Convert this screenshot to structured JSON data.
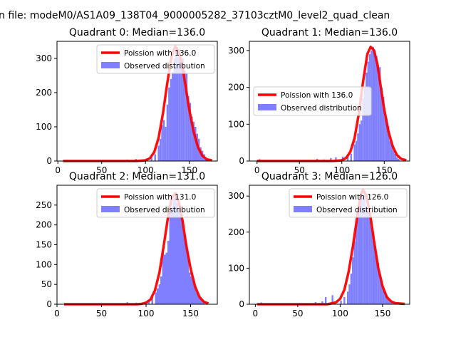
{
  "suptitle": "n file: modeM0/AS1A09_138T04_9000005282_37103cztM0_level2_quad_clean",
  "legend_observed": "Observed distribution",
  "colors": {
    "poisson": "#ff0000",
    "hist": "#7f7fff"
  },
  "chart_data": [
    {
      "type": "histogram+line",
      "title": "Quadrant 0: Median=136.0",
      "median": 136.0,
      "poisson_label": "Poission with 136.0",
      "legend_position": "top-right",
      "xlim": [
        -1,
        182
      ],
      "ylim": [
        0,
        350
      ],
      "xticks": [
        0,
        50,
        100,
        150
      ],
      "yticks": [
        0,
        100,
        200,
        300
      ],
      "hist": [
        [
          10,
          3
        ],
        [
          78,
          4
        ],
        [
          88,
          6
        ],
        [
          100,
          7
        ],
        [
          106,
          10
        ],
        [
          110,
          20
        ],
        [
          114,
          45
        ],
        [
          116,
          65
        ],
        [
          118,
          105
        ],
        [
          120,
          120
        ],
        [
          122,
          100
        ],
        [
          124,
          165
        ],
        [
          126,
          215
        ],
        [
          128,
          240
        ],
        [
          130,
          260
        ],
        [
          132,
          300
        ],
        [
          134,
          330
        ],
        [
          136,
          305
        ],
        [
          138,
          300
        ],
        [
          140,
          290
        ],
        [
          142,
          300
        ],
        [
          144,
          265
        ],
        [
          146,
          255
        ],
        [
          148,
          190
        ],
        [
          150,
          170
        ],
        [
          152,
          130
        ],
        [
          154,
          115
        ],
        [
          156,
          100
        ],
        [
          158,
          80
        ],
        [
          160,
          65
        ],
        [
          162,
          40
        ],
        [
          164,
          30
        ],
        [
          166,
          20
        ],
        [
          168,
          10
        ],
        [
          170,
          5
        ]
      ],
      "poisson": [
        [
          6,
          0
        ],
        [
          90,
          0
        ],
        [
          100,
          2
        ],
        [
          105,
          8
        ],
        [
          110,
          26
        ],
        [
          115,
          68
        ],
        [
          120,
          140
        ],
        [
          125,
          230
        ],
        [
          130,
          308
        ],
        [
          134,
          335
        ],
        [
          138,
          320
        ],
        [
          142,
          280
        ],
        [
          146,
          215
        ],
        [
          150,
          150
        ],
        [
          155,
          85
        ],
        [
          160,
          40
        ],
        [
          165,
          15
        ],
        [
          170,
          5
        ],
        [
          176,
          2
        ]
      ]
    },
    {
      "type": "histogram+line",
      "title": "Quadrant 1: Median=136.0",
      "median": 136.0,
      "poisson_label": "Poission with 136.0",
      "legend_position": "center-left",
      "xlim": [
        -9,
        180
      ],
      "ylim": [
        0,
        325
      ],
      "xticks": [
        0,
        50,
        100,
        150
      ],
      "yticks": [
        0,
        100,
        200,
        300
      ],
      "hist": [
        [
          2,
          5
        ],
        [
          70,
          6
        ],
        [
          78,
          4
        ],
        [
          86,
          8
        ],
        [
          92,
          10
        ],
        [
          100,
          12
        ],
        [
          106,
          14
        ],
        [
          110,
          20
        ],
        [
          114,
          45
        ],
        [
          116,
          55
        ],
        [
          118,
          75
        ],
        [
          120,
          100
        ],
        [
          122,
          110
        ],
        [
          124,
          170
        ],
        [
          126,
          200
        ],
        [
          128,
          240
        ],
        [
          130,
          270
        ],
        [
          132,
          290
        ],
        [
          134,
          300
        ],
        [
          136,
          310
        ],
        [
          138,
          300
        ],
        [
          140,
          285
        ],
        [
          142,
          260
        ],
        [
          144,
          255
        ],
        [
          146,
          200
        ],
        [
          148,
          175
        ],
        [
          150,
          120
        ],
        [
          152,
          115
        ],
        [
          154,
          95
        ],
        [
          156,
          55
        ],
        [
          158,
          45
        ],
        [
          160,
          30
        ],
        [
          162,
          20
        ],
        [
          164,
          10
        ],
        [
          166,
          6
        ]
      ],
      "poisson": [
        [
          0,
          0
        ],
        [
          90,
          0
        ],
        [
          100,
          2
        ],
        [
          105,
          8
        ],
        [
          110,
          25
        ],
        [
          115,
          62
        ],
        [
          120,
          128
        ],
        [
          125,
          215
        ],
        [
          130,
          290
        ],
        [
          134,
          310
        ],
        [
          138,
          300
        ],
        [
          142,
          262
        ],
        [
          146,
          200
        ],
        [
          150,
          140
        ],
        [
          155,
          80
        ],
        [
          160,
          40
        ],
        [
          165,
          16
        ],
        [
          170,
          6
        ],
        [
          176,
          2
        ]
      ]
    },
    {
      "type": "histogram+line",
      "title": "Quadrant 2: Median=131.0",
      "median": 131.0,
      "poisson_label": "Poission with 131.0",
      "legend_position": "top-right",
      "xlim": [
        0,
        180
      ],
      "ylim": [
        0,
        300
      ],
      "xticks": [
        0,
        50,
        100,
        150
      ],
      "yticks": [
        0,
        50,
        100,
        150,
        200,
        250
      ],
      "hist": [
        [
          78,
          5
        ],
        [
          88,
          4
        ],
        [
          98,
          6
        ],
        [
          102,
          10
        ],
        [
          106,
          18
        ],
        [
          110,
          30
        ],
        [
          112,
          40
        ],
        [
          114,
          50
        ],
        [
          116,
          70
        ],
        [
          118,
          140
        ],
        [
          120,
          125
        ],
        [
          122,
          130
        ],
        [
          124,
          160
        ],
        [
          126,
          230
        ],
        [
          128,
          245
        ],
        [
          130,
          270
        ],
        [
          132,
          280
        ],
        [
          134,
          255
        ],
        [
          136,
          240
        ],
        [
          138,
          230
        ],
        [
          140,
          210
        ],
        [
          142,
          175
        ],
        [
          144,
          160
        ],
        [
          146,
          130
        ],
        [
          148,
          80
        ],
        [
          150,
          70
        ],
        [
          152,
          60
        ],
        [
          154,
          45
        ],
        [
          156,
          30
        ],
        [
          158,
          20
        ],
        [
          160,
          15
        ],
        [
          162,
          10
        ],
        [
          164,
          8
        ]
      ],
      "poisson": [
        [
          8,
          0
        ],
        [
          90,
          0
        ],
        [
          95,
          1
        ],
        [
          100,
          4
        ],
        [
          105,
          12
        ],
        [
          110,
          35
        ],
        [
          115,
          80
        ],
        [
          120,
          150
        ],
        [
          125,
          225
        ],
        [
          129,
          270
        ],
        [
          133,
          280
        ],
        [
          137,
          255
        ],
        [
          141,
          210
        ],
        [
          145,
          150
        ],
        [
          150,
          90
        ],
        [
          155,
          45
        ],
        [
          160,
          18
        ],
        [
          165,
          6
        ],
        [
          170,
          2
        ]
      ]
    },
    {
      "type": "histogram+line",
      "title": "Quadrant 3: Median=126.0",
      "median": 126.0,
      "poisson_label": "Poission with 126.0",
      "legend_position": "top-right",
      "xlim": [
        -7,
        182
      ],
      "ylim": [
        0,
        330
      ],
      "xticks": [
        0,
        50,
        100,
        150
      ],
      "yticks": [
        0,
        100,
        200,
        300
      ],
      "hist": [
        [
          6,
          5
        ],
        [
          70,
          6
        ],
        [
          78,
          8
        ],
        [
          82,
          20
        ],
        [
          90,
          25
        ],
        [
          100,
          10
        ],
        [
          104,
          20
        ],
        [
          108,
          35
        ],
        [
          110,
          55
        ],
        [
          112,
          85
        ],
        [
          114,
          130
        ],
        [
          116,
          175
        ],
        [
          118,
          220
        ],
        [
          120,
          255
        ],
        [
          122,
          285
        ],
        [
          124,
          310
        ],
        [
          126,
          300
        ],
        [
          128,
          310
        ],
        [
          130,
          270
        ],
        [
          132,
          255
        ],
        [
          134,
          245
        ],
        [
          136,
          215
        ],
        [
          138,
          195
        ],
        [
          140,
          160
        ],
        [
          142,
          130
        ],
        [
          144,
          115
        ],
        [
          146,
          80
        ],
        [
          148,
          65
        ],
        [
          150,
          45
        ],
        [
          152,
          35
        ],
        [
          154,
          25
        ],
        [
          156,
          15
        ],
        [
          158,
          8
        ],
        [
          160,
          5
        ]
      ],
      "poisson": [
        [
          2,
          0
        ],
        [
          85,
          0
        ],
        [
          95,
          5
        ],
        [
          100,
          15
        ],
        [
          105,
          40
        ],
        [
          110,
          90
        ],
        [
          115,
          160
        ],
        [
          120,
          240
        ],
        [
          124,
          300
        ],
        [
          127,
          318
        ],
        [
          131,
          300
        ],
        [
          135,
          255
        ],
        [
          140,
          175
        ],
        [
          145,
          100
        ],
        [
          150,
          50
        ],
        [
          155,
          20
        ],
        [
          160,
          8
        ],
        [
          165,
          3
        ],
        [
          176,
          1
        ]
      ]
    }
  ]
}
